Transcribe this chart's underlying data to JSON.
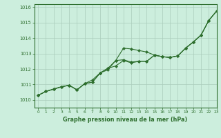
{
  "title": "Graphe pression niveau de la mer (hPa)",
  "background_color": "#cceedd",
  "grid_color": "#aaccbb",
  "line_color": "#2d6e2d",
  "marker_color": "#2d6e2d",
  "xlim": [
    -0.5,
    23
  ],
  "ylim": [
    1009.5,
    1016.2
  ],
  "yticks": [
    1010,
    1011,
    1012,
    1013,
    1014,
    1015,
    1016
  ],
  "xticks": [
    0,
    1,
    2,
    3,
    4,
    5,
    6,
    7,
    8,
    9,
    10,
    11,
    12,
    13,
    14,
    15,
    16,
    17,
    18,
    19,
    20,
    21,
    22,
    23
  ],
  "line1": [
    1010.3,
    1010.55,
    1010.7,
    1010.85,
    1010.95,
    1010.65,
    1011.05,
    1011.3,
    1011.75,
    1011.95,
    1012.55,
    1013.35,
    1013.3,
    1013.2,
    1013.1,
    1012.9,
    1012.8,
    1012.75,
    1012.85,
    1013.35,
    1013.75,
    1014.2,
    1015.15,
    1015.75
  ],
  "line2": [
    1010.3,
    1010.55,
    1010.7,
    1010.85,
    1010.95,
    1010.65,
    1011.05,
    1011.15,
    1011.75,
    1012.05,
    1012.55,
    1012.6,
    1012.45,
    1012.5,
    1012.5,
    1012.9,
    1012.8,
    1012.75,
    1012.85,
    1013.35,
    1013.75,
    1014.2,
    1015.15,
    1015.75
  ],
  "line3": [
    1010.3,
    1010.55,
    1010.7,
    1010.85,
    1010.95,
    1010.65,
    1011.05,
    1011.15,
    1011.75,
    1012.05,
    1012.2,
    1012.55,
    1012.4,
    1012.5,
    1012.5,
    1012.9,
    1012.8,
    1012.75,
    1012.85,
    1013.35,
    1013.75,
    1014.2,
    1015.15,
    1015.75
  ]
}
